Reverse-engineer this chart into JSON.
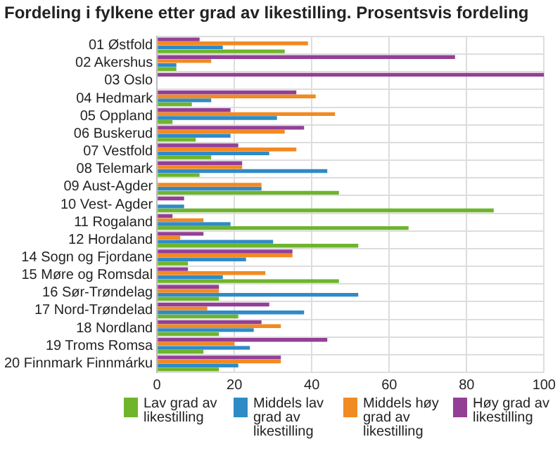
{
  "chart_data": {
    "type": "bar",
    "orientation": "horizontal",
    "title": "Fordeling i fylkene etter grad av likestilling. Prosentsvis fordeling",
    "categories": [
      "01 Østfold",
      "02 Akershus",
      "03 Oslo",
      "04 Hedmark",
      "05 Oppland",
      "06 Buskerud",
      "07 Vestfold",
      "08 Telemark",
      "09 Aust-Agder",
      "10 Vest- Agder",
      "11 Rogaland",
      "12 Hordaland",
      "14 Sogn og Fjordane",
      "15 Møre og Romsdal",
      "16 Sør-Trøndelag",
      "17 Nord-Trøndelad",
      "18 Nordland",
      "19 Troms Romsa",
      "20 Finnmark Finnmárku"
    ],
    "series": [
      {
        "name": "Høy grad av likestilling",
        "color": "#943f96",
        "values": [
          11,
          77,
          100,
          36,
          19,
          38,
          21,
          22,
          0,
          7,
          4,
          12,
          35,
          8,
          16,
          29,
          27,
          44,
          32
        ]
      },
      {
        "name": "Middels høy grad av likestilling",
        "color": "#f28a22",
        "values": [
          39,
          14,
          0,
          41,
          46,
          33,
          36,
          22,
          27,
          0,
          12,
          6,
          35,
          28,
          16,
          13,
          32,
          20,
          32
        ]
      },
      {
        "name": "Middels lav grad av likestilling",
        "color": "#2f8bc6",
        "values": [
          17,
          5,
          0,
          14,
          31,
          19,
          29,
          44,
          27,
          7,
          19,
          30,
          23,
          17,
          52,
          38,
          25,
          24,
          21
        ]
      },
      {
        "name": "Lav grad av likestilling",
        "color": "#6eb52c",
        "values": [
          33,
          5,
          0,
          9,
          4,
          10,
          14,
          11,
          47,
          87,
          65,
          52,
          8,
          47,
          16,
          21,
          16,
          12,
          16
        ]
      }
    ],
    "xlim": [
      0,
      100
    ],
    "xticks": [
      0,
      20,
      40,
      60,
      80,
      100
    ],
    "grid": true,
    "legend": "bottom"
  }
}
